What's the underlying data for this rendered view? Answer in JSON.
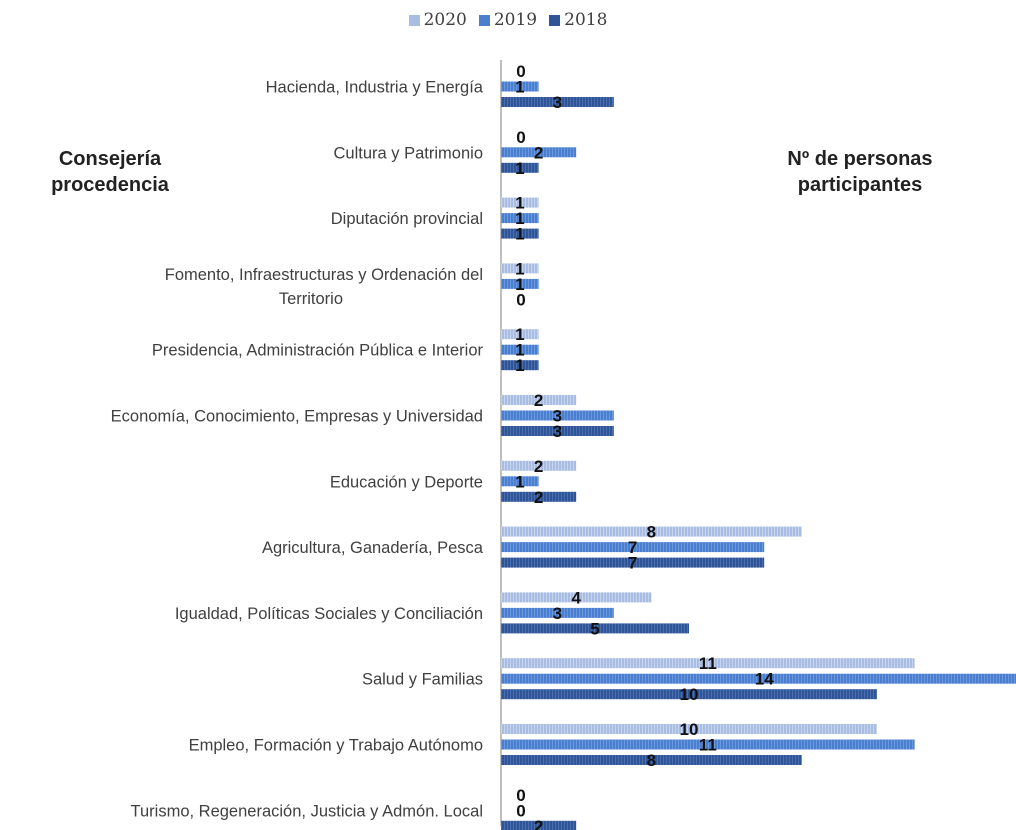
{
  "chart_data": {
    "type": "bar",
    "orientation": "horizontal",
    "left_title": "Consejería procedencia",
    "right_title": "Nº de personas participantes",
    "categories": [
      "Hacienda, Industria y Energía",
      "Cultura y Patrimonio",
      "Diputación provincial",
      "Fomento, Infraestructuras y Ordenación del Territorio",
      "Presidencia, Administración Pública e Interior",
      "Economía, Conocimiento, Empresas y Universidad",
      "Educación y Deporte",
      "Agricultura, Ganadería, Pesca",
      "Igualdad, Políticas Sociales y Conciliación",
      "Salud y Familias",
      "Empleo, Formación y Trabajo Autónomo",
      "Turismo, Regeneración, Justicia y Admón. Local"
    ],
    "series": [
      {
        "name": "2020",
        "color": "#a9bde3",
        "values": [
          0,
          0,
          1,
          1,
          1,
          2,
          2,
          8,
          4,
          11,
          10,
          0
        ]
      },
      {
        "name": "2019",
        "color": "#4a7fd0",
        "values": [
          1,
          2,
          1,
          1,
          1,
          3,
          1,
          7,
          3,
          14,
          11,
          0
        ]
      },
      {
        "name": "2018",
        "color": "#2f5597",
        "values": [
          3,
          1,
          1,
          0,
          1,
          3,
          2,
          7,
          5,
          10,
          8,
          2
        ]
      }
    ],
    "legend_placement": "top",
    "xlim": [
      0,
      14
    ],
    "grid": false
  }
}
